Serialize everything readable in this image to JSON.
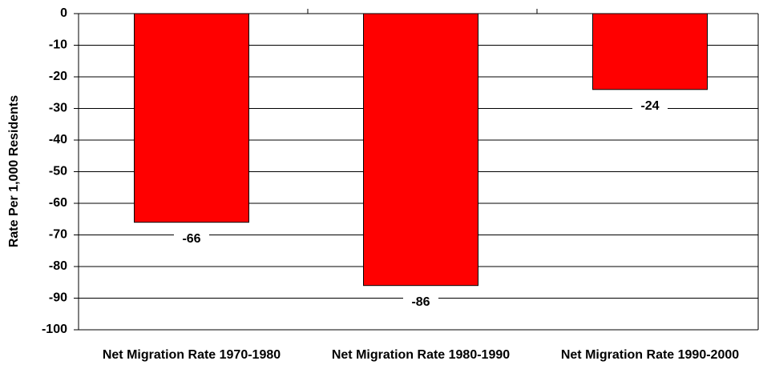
{
  "chart_data": {
    "type": "bar",
    "y_label": "Rate Per 1,000 Residents",
    "categories": [
      "Net Migration Rate 1970-1980",
      "Net Migration Rate 1980-1990",
      "Net Migration Rate 1990-2000"
    ],
    "values": [
      -66,
      -86,
      -24
    ],
    "color": "#ff0000",
    "ylim": [
      -100,
      0
    ],
    "yticks": [
      0,
      -10,
      -20,
      -30,
      -40,
      -50,
      -60,
      -70,
      -80,
      -90,
      -100
    ],
    "grid": true
  }
}
